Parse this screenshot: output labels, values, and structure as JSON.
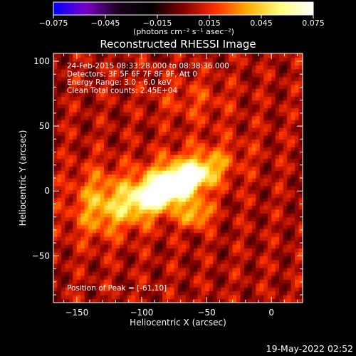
{
  "chart_data": {
    "type": "heatmap",
    "title": "Reconstructed RHESSI Image",
    "xlabel": "Heliocentric X (arcsec)",
    "ylabel": "Heliocentric Y (arcsec)",
    "xlim": [
      -168,
      24
    ],
    "ylim": [
      -86,
      106
    ],
    "x_ticks": [
      -150,
      -100,
      -50,
      0
    ],
    "y_ticks": [
      -50,
      0,
      50,
      100
    ],
    "colorbar": {
      "range": [
        -0.075,
        0.075
      ],
      "ticks": [
        "−0.075",
        "−0.045",
        "−0.015",
        "0.015",
        "0.045",
        "0.075"
      ],
      "unit_label": "(photons cm⁻² s⁻¹ asec⁻²)",
      "colors": [
        "#0000ff",
        "#7a00c8",
        "#1a001a",
        "#000000",
        "#800000",
        "#ff3000",
        "#ffb000",
        "#ffff80",
        "#ffffff"
      ]
    },
    "info_lines": [
      "24-Feb-2015 08:33:28.000 to 08:38:36.000",
      "Detectors: 3F 5F 6F 7F 8F 9F, Att 0",
      "Energy Range: 3.0 - 6.0 keV",
      "Clean     Total counts: 2.45E+04"
    ],
    "peak_text": "Position of Peak = [-61,10]",
    "peak_position": [
      -61,
      10
    ],
    "sources": [
      {
        "x": -75,
        "y": 5,
        "sx": 20,
        "sy": 7,
        "angle": 25,
        "amp": 0.075
      },
      {
        "x": -85,
        "y": 2,
        "sx": 35,
        "sy": 14,
        "angle": 25,
        "amp": 0.045
      },
      {
        "x": -58,
        "y": -18,
        "sx": 8,
        "sy": 7,
        "angle": 0,
        "amp": 0.035
      },
      {
        "x": -135,
        "y": -5,
        "sx": 14,
        "sy": 18,
        "angle": 0,
        "amp": 0.022
      },
      {
        "x": -60,
        "y": 70,
        "sx": 20,
        "sy": 12,
        "angle": 0,
        "amp": 0.012
      }
    ]
  },
  "footer": {
    "timestamp": "19-May-2022 02:52"
  },
  "colors": {
    "background": "#000000",
    "foreground": "#ffffff"
  }
}
